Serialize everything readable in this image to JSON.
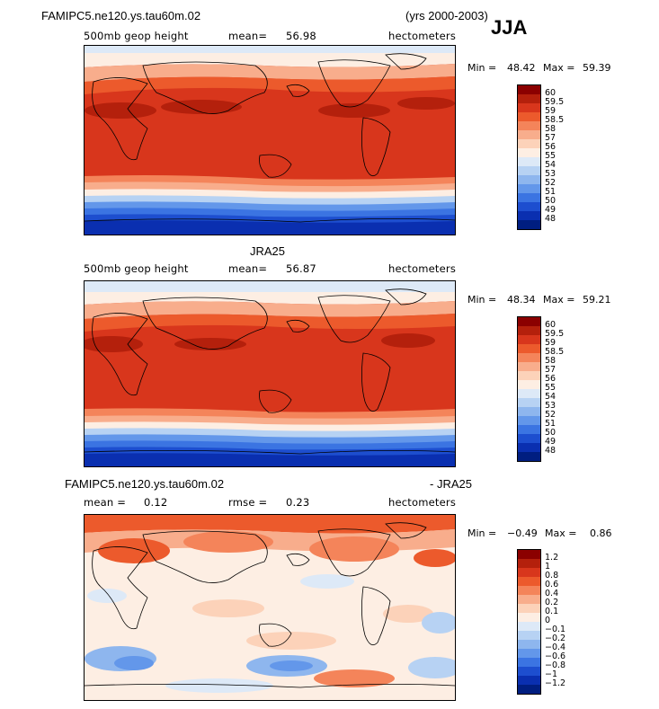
{
  "header": {
    "case_name": "FAMIPC5.ne120.ys.tau60m.02",
    "years": "(yrs 2000-2003)",
    "season": "JJA"
  },
  "panels": [
    {
      "id": "model",
      "title": "",
      "field": "500mb geop height",
      "mean_label": "mean=",
      "mean_value": "56.98",
      "units": "hectometers",
      "min_label": "Min =",
      "min_value": "48.42",
      "max_label": "Max =",
      "max_value": "59.39",
      "colorbar_labels": [
        "60",
        "59.5",
        "59",
        "58.5",
        "58",
        "57",
        "56",
        "55",
        "54",
        "53",
        "52",
        "51",
        "50",
        "49",
        "48"
      ]
    },
    {
      "id": "obs",
      "title": "JRA25",
      "field": "500mb geop height",
      "mean_label": "mean=",
      "mean_value": "56.87",
      "units": "hectometers",
      "min_label": "Min =",
      "min_value": "48.34",
      "max_label": "Max =",
      "max_value": "59.21",
      "colorbar_labels": [
        "60",
        "59.5",
        "59",
        "58.5",
        "58",
        "57",
        "56",
        "55",
        "54",
        "53",
        "52",
        "51",
        "50",
        "49",
        "48"
      ]
    },
    {
      "id": "diff",
      "title_left": "FAMIPC5.ne120.ys.tau60m.02",
      "title_right": "- JRA25",
      "mean_label": "mean =",
      "mean_value": "0.12",
      "rmse_label": "rmse =",
      "rmse_value": "0.23",
      "units": "hectometers",
      "min_label": "Min =",
      "min_value": "−0.49",
      "max_label": "Max =",
      "max_value": "0.86",
      "colorbar_labels": [
        "1.2",
        "1",
        "0.8",
        "0.6",
        "0.4",
        "0.2",
        "0.1",
        "0",
        "−0.1",
        "−0.2",
        "−0.4",
        "−0.6",
        "−0.8",
        "−1",
        "−1.2"
      ]
    }
  ],
  "colors": {
    "scale_abs": [
      "#8b0000",
      "#b4200c",
      "#d8361c",
      "#ec5a2c",
      "#f4845a",
      "#f8ad8c",
      "#fcd2b9",
      "#fdeee3",
      "#dde9f7",
      "#b7d2f3",
      "#8eb6ee",
      "#6397ea",
      "#3b74e2",
      "#1d4ecf",
      "#0a2fb0",
      "#001e80"
    ],
    "scale_diff": [
      "#8b0000",
      "#b4200c",
      "#d8361c",
      "#ec5a2c",
      "#f4845a",
      "#f8ad8c",
      "#fcd2b9",
      "#fdeee3",
      "#dde9f7",
      "#b7d2f3",
      "#8eb6ee",
      "#6397ea",
      "#3b74e2",
      "#1d4ecf",
      "#0a2fb0",
      "#001e80"
    ]
  }
}
